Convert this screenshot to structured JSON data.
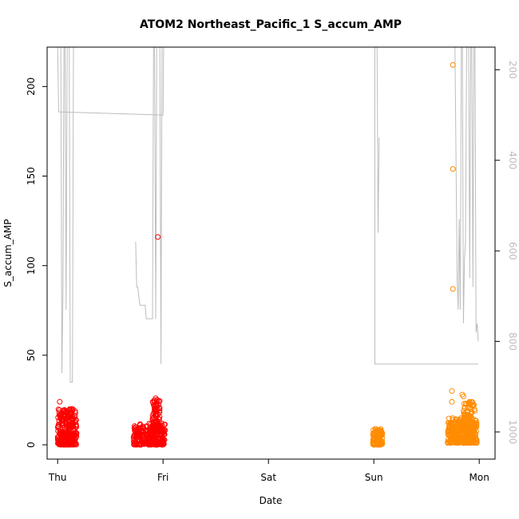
{
  "chart_data": {
    "type": "scatter",
    "title": "ATOM2 Northeast_Pacific_1 S_accum_AMP",
    "xlabel": "Date",
    "ylabel": "S_accum_AMP",
    "x_ticks": [
      "Thu",
      "Fri",
      "Sat",
      "Sun",
      "Mon"
    ],
    "x_range_days": [
      -0.1,
      4.15
    ],
    "ylim": [
      -8,
      222
    ],
    "y_ticks": [
      0,
      50,
      100,
      150,
      200
    ],
    "y2_ticks": [
      200,
      400,
      600,
      800,
      1000
    ],
    "y2_range": [
      1060,
      150
    ],
    "y2_reversed": true,
    "grid": false,
    "colors": {
      "series_red": "#ff0000",
      "series_orange": "#ff8c00",
      "depth_line": "#bdbdbd"
    },
    "series": [
      {
        "color": "red",
        "groups": [
          {
            "x_range": [
              0.0,
              0.18
            ],
            "y_range": [
              0,
              20
            ],
            "count": 260
          },
          {
            "x_range": [
              0.72,
              1.02
            ],
            "y_range": [
              0,
              12
            ],
            "count": 260
          },
          {
            "x_range": [
              0.9,
              0.97
            ],
            "y_range": [
              8,
              26
            ],
            "count": 90
          }
        ],
        "points": [
          {
            "x": 0.02,
            "y": 24
          },
          {
            "x": 0.04,
            "y": 18
          },
          {
            "x": 0.07,
            "y": 17
          },
          {
            "x": 0.13,
            "y": 20
          },
          {
            "x": 0.14,
            "y": 19
          },
          {
            "x": 0.95,
            "y": 116
          },
          {
            "x": 0.93,
            "y": 26
          },
          {
            "x": 0.94,
            "y": 24
          }
        ]
      },
      {
        "color": "orange",
        "groups": [
          {
            "x_range": [
              2.99,
              3.08
            ],
            "y_range": [
              0,
              9
            ],
            "count": 120
          },
          {
            "x_range": [
              3.7,
              3.98
            ],
            "y_range": [
              1,
              15
            ],
            "count": 300
          },
          {
            "x_range": [
              3.85,
              3.96
            ],
            "y_range": [
              8,
              24
            ],
            "count": 80
          }
        ],
        "points": [
          {
            "x": 3.75,
            "y": 212
          },
          {
            "x": 3.75,
            "y": 154
          },
          {
            "x": 3.75,
            "y": 87
          },
          {
            "x": 3.74,
            "y": 30
          },
          {
            "x": 3.74,
            "y": 24
          },
          {
            "x": 3.84,
            "y": 28
          },
          {
            "x": 3.85,
            "y": 27
          },
          {
            "x": 3.75,
            "y": 14
          }
        ]
      }
    ],
    "depth_line": {
      "y_axis": "right",
      "segments": [
        [
          [
            0.0,
            150
          ],
          [
            0.01,
            293
          ],
          [
            1.0,
            300
          ],
          [
            1.005,
            150
          ]
        ],
        [
          [
            0.03,
            150
          ],
          [
            0.04,
            870
          ],
          [
            0.05,
            700
          ],
          [
            0.06,
            150
          ]
        ],
        [
          [
            0.07,
            150
          ],
          [
            0.08,
            730
          ],
          [
            0.09,
            150
          ]
        ],
        [
          [
            0.11,
            150
          ],
          [
            0.12,
            890
          ],
          [
            0.14,
            890
          ],
          [
            0.15,
            150
          ]
        ],
        [
          [
            0.74,
            580
          ],
          [
            0.75,
            680
          ],
          [
            0.76,
            680
          ],
          [
            0.78,
            720
          ],
          [
            0.83,
            720
          ],
          [
            0.84,
            750
          ],
          [
            0.9,
            750
          ],
          [
            0.91,
            150
          ]
        ],
        [
          [
            0.92,
            150
          ],
          [
            0.93,
            750
          ],
          [
            0.94,
            150
          ]
        ],
        [
          [
            0.97,
            150
          ],
          [
            0.98,
            850
          ],
          [
            0.99,
            150
          ]
        ],
        [
          [
            3.01,
            150
          ],
          [
            3.01,
            850
          ],
          [
            3.99,
            850
          ]
        ],
        [
          [
            3.03,
            150
          ],
          [
            3.04,
            560
          ],
          [
            3.05,
            350
          ]
        ],
        [
          [
            3.77,
            150
          ],
          [
            3.79,
            660
          ],
          [
            3.8,
            730
          ],
          [
            3.81,
            530
          ],
          [
            3.82,
            730
          ],
          [
            3.83,
            150
          ]
        ],
        [
          [
            3.84,
            150
          ],
          [
            3.85,
            760
          ],
          [
            3.86,
            620
          ],
          [
            3.87,
            580
          ],
          [
            3.88,
            150
          ]
        ],
        [
          [
            3.9,
            150
          ],
          [
            3.91,
            660
          ],
          [
            3.92,
            150
          ]
        ],
        [
          [
            3.93,
            150
          ],
          [
            3.94,
            680
          ],
          [
            3.95,
            150
          ]
        ],
        [
          [
            3.96,
            150
          ],
          [
            3.97,
            780
          ],
          [
            3.98,
            760
          ],
          [
            3.99,
            800
          ]
        ]
      ]
    }
  }
}
